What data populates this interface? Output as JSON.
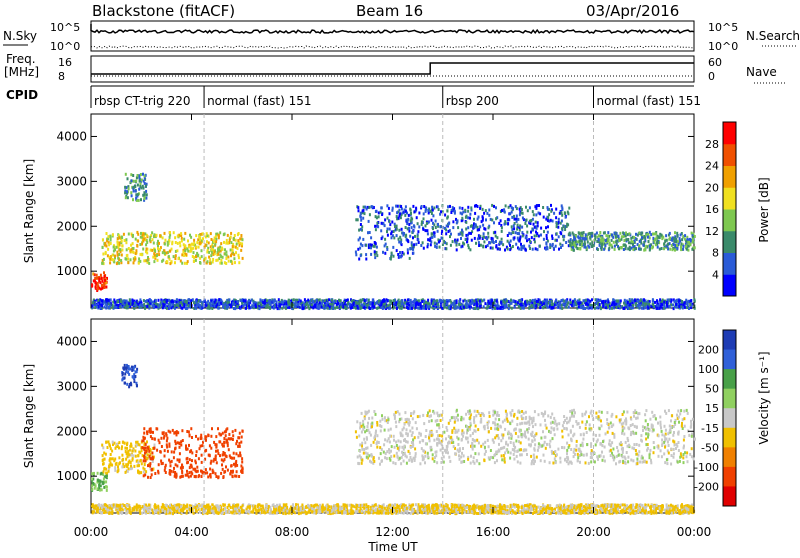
{
  "header": {
    "station": "Blackstone (fitACF)",
    "beam": "Beam 16",
    "date": "03/Apr/2016"
  },
  "status_panels": {
    "nsky_label": "N.Sky",
    "nsearch_label": "N.Search",
    "noise_ticks": [
      "10^5",
      "10^0"
    ],
    "freq_label": "Freq.",
    "freq_unit": "[MHz]",
    "freq_ticks": [
      "16",
      "8"
    ],
    "nave_label": "Nave",
    "nave_ticks": [
      "60",
      "0"
    ],
    "cpid_label": "CPID"
  },
  "cpid_segments": [
    {
      "name": "rbsp CT-trig 220",
      "start_hour": 0.0
    },
    {
      "name": "normal (fast) 151",
      "start_hour": 4.5
    },
    {
      "name": "rbsp 200",
      "start_hour": 14.0
    },
    {
      "name": "normal (fast) 151",
      "start_hour": 20.0
    }
  ],
  "x_axis": {
    "title": "Time UT",
    "ticks": [
      "00:00",
      "04:00",
      "08:00",
      "12:00",
      "16:00",
      "20:00",
      "00:00"
    ],
    "range_hours": [
      0,
      24
    ]
  },
  "power_panel": {
    "ylabel": "Slant Range [km]",
    "yticks": [
      "1000",
      "2000",
      "3000",
      "4000"
    ],
    "colorbar_title": "Power [dB]",
    "colorbar_ticks": [
      "4",
      "8",
      "12",
      "16",
      "20",
      "24",
      "28"
    ],
    "colorbar_colors": [
      "#0000ff",
      "#2a5bd7",
      "#3a8a6a",
      "#7ec850",
      "#f0e020",
      "#f0a000",
      "#f05000",
      "#ff0000"
    ]
  },
  "velocity_panel": {
    "ylabel": "Slant Range [km]",
    "yticks": [
      "1000",
      "2000",
      "3000",
      "4000"
    ],
    "colorbar_title": "Velocity [m s⁻¹]",
    "colorbar_ticks": [
      "200",
      "100",
      "50",
      "15",
      "-15",
      "-50",
      "-100",
      "-200"
    ],
    "colorbar_colors": [
      "#1e3cb4",
      "#3060d8",
      "#48a048",
      "#90d060",
      "#c8c8c8",
      "#f0c000",
      "#f08000",
      "#f04000",
      "#e00000"
    ]
  },
  "chart_data": [
    {
      "type": "heatmap",
      "title": "Power",
      "xlabel": "Time UT",
      "ylabel": "Slant Range [km]",
      "xlim": [
        0,
        24
      ],
      "ylim": [
        180,
        4500
      ],
      "colorbar": "Power [dB]",
      "scatter_regions": [
        {
          "t_start": 0.0,
          "t_end": 0.6,
          "range_low": 600,
          "range_high": 1000,
          "power_db": 28
        },
        {
          "t_start": 0.4,
          "t_end": 6.0,
          "range_low": 1200,
          "range_high": 1900,
          "power_db": 18
        },
        {
          "t_start": 1.3,
          "t_end": 2.2,
          "range_low": 2600,
          "range_high": 3200,
          "power_db": 10
        },
        {
          "t_start": 10.5,
          "t_end": 12.8,
          "range_low": 1300,
          "range_high": 2500,
          "power_db": 6
        },
        {
          "t_start": 12.5,
          "t_end": 19.0,
          "range_low": 1500,
          "range_high": 2500,
          "power_db": 6
        },
        {
          "t_start": 19.0,
          "t_end": 24.0,
          "range_low": 1500,
          "range_high": 1900,
          "power_db": 10
        },
        {
          "t_start": 0.0,
          "t_end": 24.0,
          "range_low": 200,
          "range_high": 400,
          "power_db": 6
        }
      ]
    },
    {
      "type": "heatmap",
      "title": "Velocity",
      "xlabel": "Time UT",
      "ylabel": "Slant Range [km]",
      "xlim": [
        0,
        24
      ],
      "ylim": [
        180,
        4500
      ],
      "colorbar": "Velocity [m s⁻¹]",
      "scatter_regions": [
        {
          "t_start": 0.0,
          "t_end": 0.6,
          "range_low": 700,
          "range_high": 1100,
          "velocity": 50
        },
        {
          "t_start": 0.4,
          "t_end": 2.5,
          "range_low": 1100,
          "range_high": 1800,
          "velocity": -30
        },
        {
          "t_start": 2.0,
          "t_end": 6.0,
          "range_low": 1000,
          "range_high": 2100,
          "velocity": -150
        },
        {
          "t_start": 1.2,
          "t_end": 1.8,
          "range_low": 3000,
          "range_high": 3500,
          "velocity": 200
        },
        {
          "t_start": 10.5,
          "t_end": 24.0,
          "range_low": 1300,
          "range_high": 2500,
          "velocity": 0
        },
        {
          "t_start": 0.0,
          "t_end": 24.0,
          "range_low": 200,
          "range_high": 400,
          "velocity": -20
        }
      ]
    }
  ]
}
